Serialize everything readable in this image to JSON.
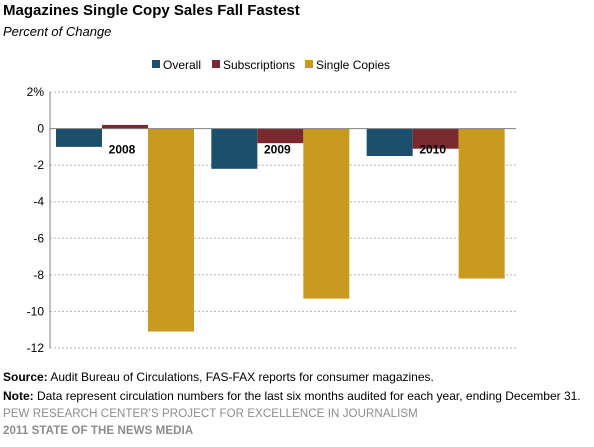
{
  "title": "Magazines Single Copy Sales Fall Fastest",
  "subtitle": "Percent of Change",
  "chart_data": {
    "type": "bar",
    "categories": [
      "2008",
      "2009",
      "2010"
    ],
    "series": [
      {
        "name": "Overall",
        "color": "#1b4f6b",
        "values": [
          -1.0,
          -2.2,
          -1.5
        ]
      },
      {
        "name": "Subscriptions",
        "color": "#7a2a2e",
        "values": [
          0.2,
          -0.8,
          -1.1
        ]
      },
      {
        "name": "Single Copies",
        "color": "#c89a20",
        "values": [
          -11.1,
          -9.3,
          -8.2
        ]
      }
    ],
    "ylim": [
      -12,
      2
    ],
    "yticks": [
      "2%",
      "0",
      "-2",
      "-4",
      "-6",
      "-8",
      "-10",
      "-12"
    ],
    "ytick_values": [
      2,
      0,
      -2,
      -4,
      -6,
      -8,
      -10,
      -12
    ],
    "grid": true,
    "legend": "top-center"
  },
  "source": {
    "label": "Source:",
    "text": "Audit Bureau of Circulations, FAS-FAX reports for consumer magazines."
  },
  "note": {
    "label": "Note:",
    "text": "Data represent circulation numbers for the last six months audited for each year, ending December 31."
  },
  "footer": {
    "line1": "PEW RESEARCH CENTER'S PROJECT FOR EXCELLENCE IN JOURNALISM",
    "line2": "2011 STATE OF THE NEWS MEDIA"
  }
}
